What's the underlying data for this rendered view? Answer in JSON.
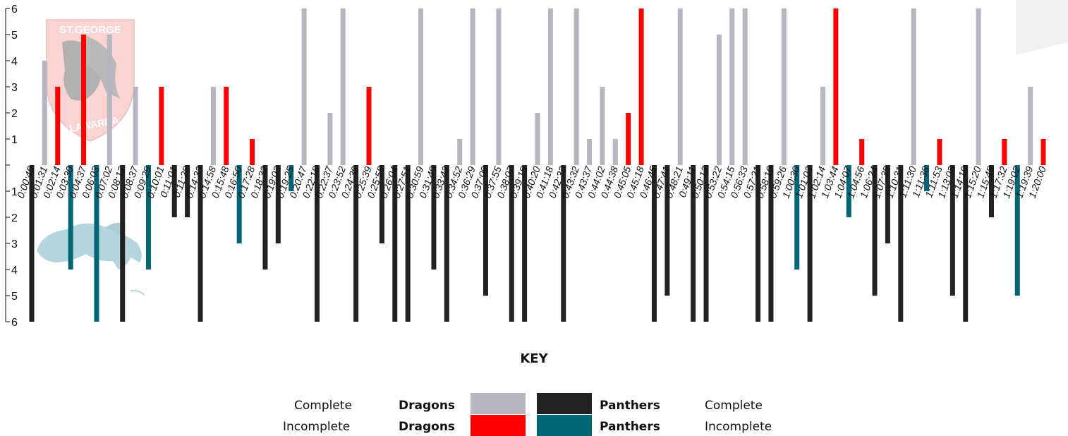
{
  "chart_data": {
    "type": "bar",
    "ylim": [
      -6,
      6
    ],
    "yticks": [
      "6",
      "5",
      "4",
      "3",
      "2",
      "1",
      "",
      "1",
      "2",
      "3",
      "4",
      "5",
      "6"
    ],
    "categories": [
      "0:00:45",
      "0:01:31",
      "0:02:14",
      "0:03:30",
      "0:04:37",
      "0:06:03",
      "0:07:02",
      "0:08:12",
      "0:08:37",
      "0:09:29",
      "0:10:01",
      "0:11:01",
      "0:11:28",
      "0:14:33",
      "0:14:58",
      "0:15:48",
      "0:16:50",
      "0:17:28",
      "0:18:32",
      "0:19:03",
      "0:19:25",
      "0:20:47",
      "0:22:18",
      "0:22:37",
      "0:23:52",
      "0:24:39",
      "0:25:39",
      "0:25:58",
      "0:26:04",
      "0:27:51",
      "0:30:59",
      "0:31:40",
      "0:33:42",
      "0:34:52",
      "0:36:29",
      "0:37:09",
      "0:37:55",
      "0:38:07",
      "0:39:19",
      "0:40:20",
      "0:41:18",
      "0:42:32",
      "0:43:32",
      "0:43:37",
      "0:44:02",
      "0:44:38",
      "0:45:05",
      "0:45:18",
      "0:46:45",
      "0:47:41",
      "0:48:21",
      "0:49:11",
      "0:50:12",
      "0:53:22",
      "0:54:15",
      "0:56:33",
      "0:57:21",
      "0:58:16",
      "0:59:26",
      "1:00:30",
      "1:01:03",
      "1:02:14",
      "1:03:44",
      "1:04:07",
      "1:04:56",
      "1:06:24",
      "1:07:35",
      "1:10:31",
      "1:11:30",
      "1:11:38",
      "1:11:53",
      "1:13:03",
      "1:14:19",
      "1:15:20",
      "1:15:48",
      "1:17:32",
      "1:19:02",
      "1:19:39",
      "1:20:00"
    ],
    "values": [
      -6,
      4,
      3,
      -4,
      5,
      -6,
      5,
      -6,
      3,
      -4,
      3,
      -2,
      -2,
      -6,
      3,
      3,
      -3,
      1,
      -4,
      -3,
      -1,
      6,
      -6,
      2,
      6,
      -6,
      3,
      -3,
      -6,
      -6,
      6,
      -4,
      -6,
      1,
      6,
      -5,
      6,
      -6,
      -6,
      2,
      6,
      -6,
      6,
      1,
      3,
      1,
      2,
      6,
      -6,
      -5,
      6,
      -6,
      -6,
      5,
      6,
      6,
      -6,
      -6,
      6,
      -4,
      -6,
      3,
      6,
      -2,
      1,
      -5,
      -3,
      -6,
      6,
      -1,
      1,
      -5,
      -6,
      6,
      -2,
      1,
      -5,
      3,
      1
    ],
    "kinds": [
      "P",
      "D",
      "d",
      "p",
      "d",
      "p",
      "D",
      "P",
      "D",
      "p",
      "d",
      "P",
      "P",
      "P",
      "D",
      "d",
      "p",
      "d",
      "P",
      "P",
      "p",
      "D",
      "P",
      "D",
      "D",
      "P",
      "d",
      "P",
      "P",
      "P",
      "D",
      "P",
      "P",
      "D",
      "D",
      "P",
      "D",
      "P",
      "P",
      "D",
      "D",
      "P",
      "D",
      "D",
      "D",
      "D",
      "d",
      "d",
      "P",
      "P",
      "D",
      "P",
      "P",
      "D",
      "D",
      "D",
      "P",
      "P",
      "D",
      "p",
      "P",
      "D",
      "d",
      "p",
      "d",
      "P",
      "P",
      "P",
      "D",
      "p",
      "d",
      "P",
      "P",
      "D",
      "P",
      "d",
      "p",
      "D",
      "d"
    ],
    "series": [
      {
        "name": "Dragons",
        "kind": "Complete",
        "code": "D",
        "color": "#b6b6c0"
      },
      {
        "name": "Dragons",
        "kind": "Incomplete",
        "code": "d",
        "color": "#ff0000"
      },
      {
        "name": "Panthers",
        "kind": "Complete",
        "code": "P",
        "color": "#222222"
      },
      {
        "name": "Panthers",
        "kind": "Incomplete",
        "code": "p",
        "color": "#006575"
      }
    ],
    "grid": false,
    "legend": "bottom-center"
  },
  "key": {
    "title": "KEY",
    "complete": "Complete",
    "incomplete": "Incomplete",
    "dragons": "Dragons",
    "panthers": "Panthers"
  },
  "logos": {
    "dragons": "St George Illawarra Dragons logo",
    "panthers": "Penrith Panthers logo"
  }
}
